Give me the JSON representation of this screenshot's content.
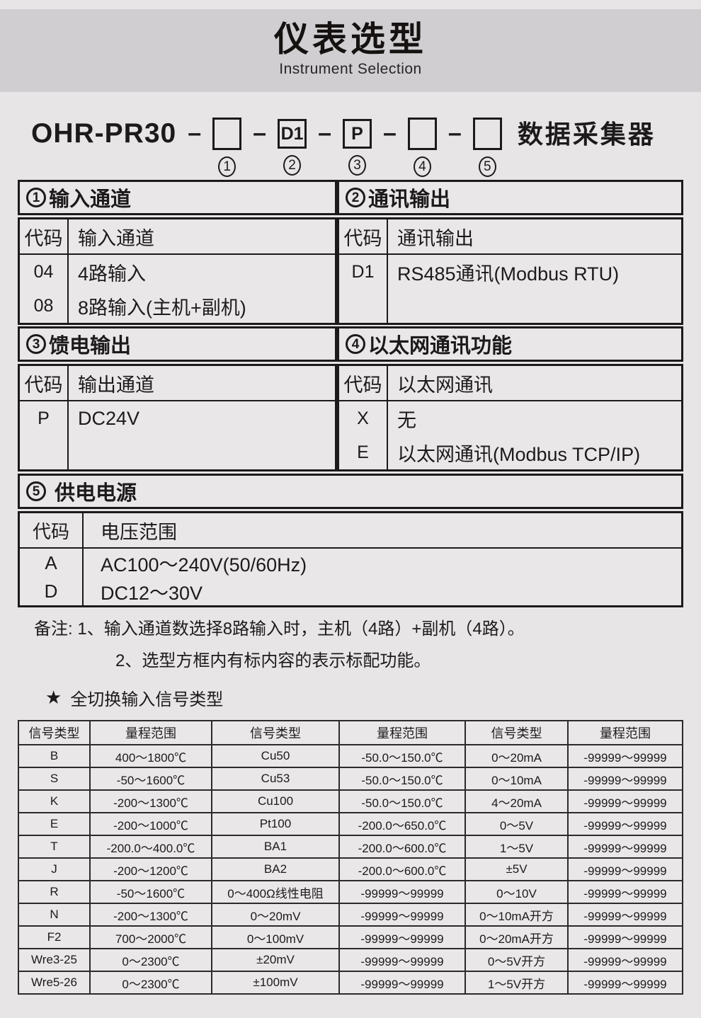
{
  "colors": {
    "page_background": "#e7e5e6",
    "banner_background": "#d0ced0",
    "text": "#1c1a1b",
    "table_border": "#1c1a1b"
  },
  "banner": {
    "title": "仪表选型",
    "subtitle": "Instrument Selection"
  },
  "model_code": {
    "prefix": "OHR-PR30",
    "dash": "–",
    "suffix": "数据采集器",
    "boxes": [
      {
        "value": "",
        "num": "1"
      },
      {
        "value": "D1",
        "num": "2"
      },
      {
        "value": "P",
        "num": "3"
      },
      {
        "value": "",
        "num": "4"
      },
      {
        "value": "",
        "num": "5"
      }
    ]
  },
  "selection_tables": [
    {
      "num": "1",
      "title": "输入通道",
      "col_headers": [
        "代码",
        "输入通道"
      ],
      "rows": [
        [
          "04",
          "4路输入"
        ],
        [
          "08",
          "8路输入(主机+副机)"
        ]
      ]
    },
    {
      "num": "2",
      "title": "通讯输出",
      "col_headers": [
        "代码",
        "通讯输出"
      ],
      "rows": [
        [
          "D1",
          "RS485通讯(Modbus RTU)"
        ]
      ]
    },
    {
      "num": "3",
      "title": "馈电输出",
      "col_headers": [
        "代码",
        "输出通道"
      ],
      "rows": [
        [
          "P",
          "DC24V"
        ]
      ]
    },
    {
      "num": "4",
      "title": "以太网通讯功能",
      "col_headers": [
        "代码",
        "以太网通讯"
      ],
      "rows": [
        [
          "X",
          "无"
        ],
        [
          "E",
          "以太网通讯(Modbus TCP/IP)"
        ]
      ]
    },
    {
      "num": "5",
      "title": "供电电源",
      "col_headers": [
        "代码",
        "电压范围"
      ],
      "rows": [
        [
          "A",
          "AC100～240V(50/60Hz)"
        ],
        [
          "D",
          "DC12～30V"
        ]
      ]
    }
  ],
  "notes": {
    "label": "备注:",
    "items": [
      "1、输入通道数选择8路输入时，主机（4路）+副机（4路）。",
      "2、选型方框内有标内容的表示标配功能。"
    ]
  },
  "signal_section": {
    "star": "★",
    "title": "全切换输入信号类型"
  },
  "signal_table": {
    "headers": [
      "信号类型",
      "量程范围",
      "信号类型",
      "量程范围",
      "信号类型",
      "量程范围"
    ],
    "rows": [
      [
        "B",
        "400～1800℃",
        "Cu50",
        "-50.0～150.0℃",
        "0～20mA",
        "-99999～99999"
      ],
      [
        "S",
        "-50～1600℃",
        "Cu53",
        "-50.0～150.0℃",
        "0～10mA",
        "-99999～99999"
      ],
      [
        "K",
        "-200～1300℃",
        "Cu100",
        "-50.0～150.0℃",
        "4～20mA",
        "-99999～99999"
      ],
      [
        "E",
        "-200～1000℃",
        "Pt100",
        "-200.0～650.0℃",
        "0～5V",
        "-99999～99999"
      ],
      [
        "T",
        "-200.0～400.0℃",
        "BA1",
        "-200.0～600.0℃",
        "1～5V",
        "-99999～99999"
      ],
      [
        "J",
        "-200～1200℃",
        "BA2",
        "-200.0～600.0℃",
        "±5V",
        "-99999～99999"
      ],
      [
        "R",
        "-50～1600℃",
        "0～400Ω线性电阻",
        "-99999～99999",
        "0～10V",
        "-99999～99999"
      ],
      [
        "N",
        "-200～1300℃",
        "0～20mV",
        "-99999～99999",
        "0～10mA开方",
        "-99999～99999"
      ],
      [
        "F2",
        "700～2000℃",
        "0～100mV",
        "-99999～99999",
        "0～20mA开方",
        "-99999～99999"
      ],
      [
        "Wre3-25",
        "0～2300℃",
        "±20mV",
        "-99999～99999",
        "0～5V开方",
        "-99999～99999"
      ],
      [
        "Wre5-26",
        "0～2300℃",
        "±100mV",
        "-99999～99999",
        "1～5V开方",
        "-99999～99999"
      ]
    ]
  }
}
